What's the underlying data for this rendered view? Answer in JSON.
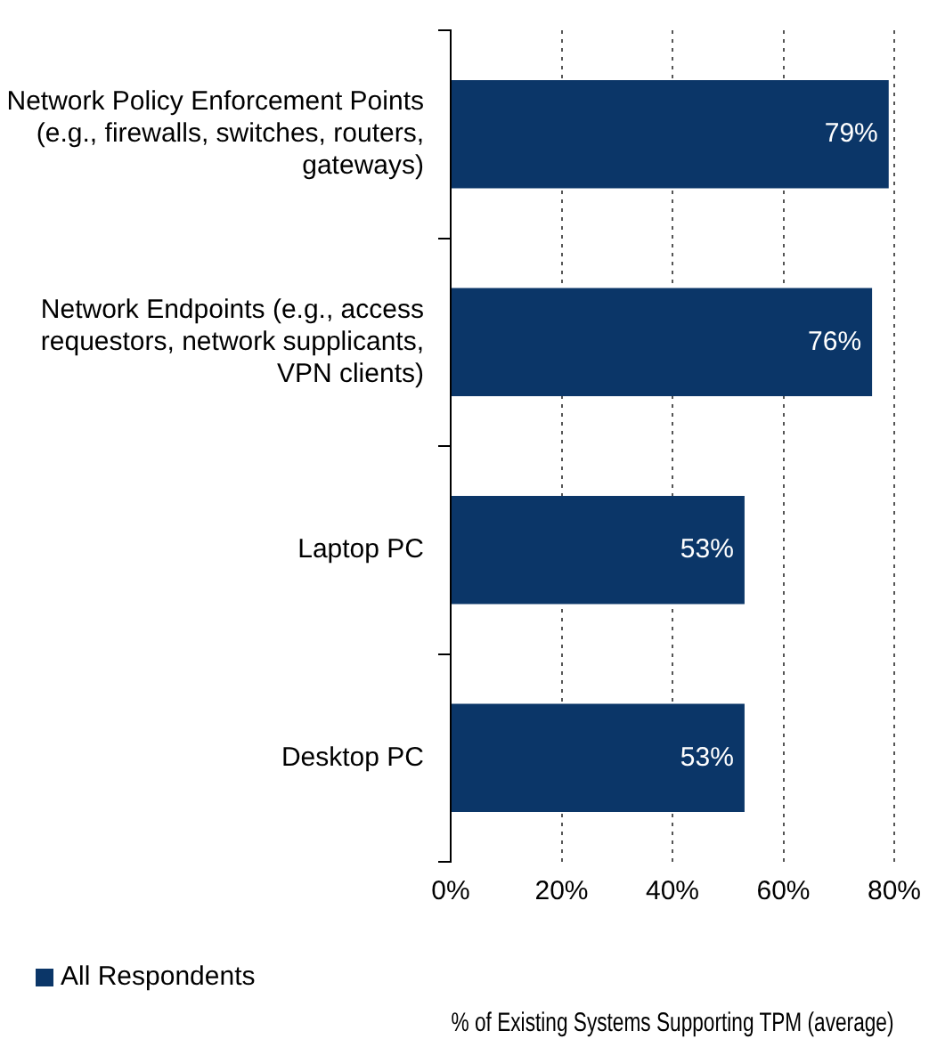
{
  "chart_data": {
    "type": "bar",
    "orientation": "horizontal",
    "xlabel": "% of Existing Systems Supporting TPM (average)",
    "categories": [
      "Network Policy Enforcement Points (e.g., firewalls, switches, routers, gateways)",
      "Network Endpoints (e.g., access requestors, network supplicants, VPN clients)",
      "Laptop PC",
      "Desktop PC"
    ],
    "series": [
      {
        "name": "All Respondents",
        "color": "#0b3668",
        "values": [
          79,
          76,
          53,
          53
        ],
        "value_labels": [
          "79%",
          "76%",
          "53%",
          "53%"
        ]
      }
    ],
    "xlim": [
      0,
      80
    ],
    "xticks": [
      {
        "value": 0,
        "label": "0%"
      },
      {
        "value": 20,
        "label": "20%"
      },
      {
        "value": 40,
        "label": "40%"
      },
      {
        "value": 60,
        "label": "60%"
      },
      {
        "value": 80,
        "label": "80%"
      }
    ],
    "grid": "x",
    "legend": "bottom left"
  }
}
